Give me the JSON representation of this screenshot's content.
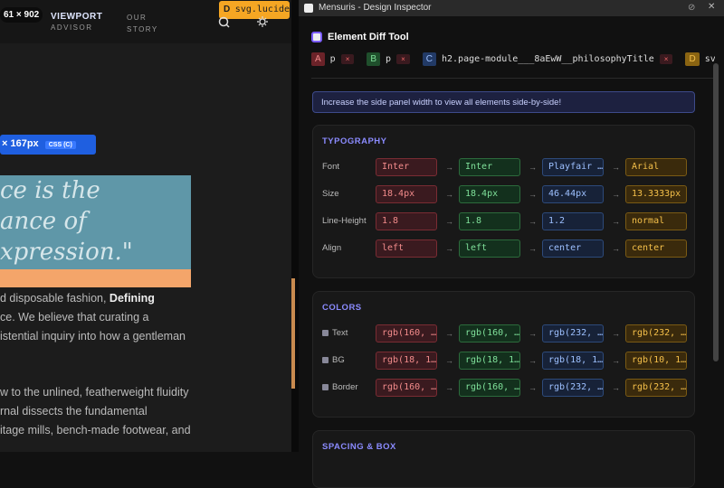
{
  "website": {
    "viewport_size": "61 × 902",
    "viewport_label": "VIEWPORT",
    "nav": [
      "ADVISOR",
      "OUR STORY"
    ],
    "hover_badge": {
      "letter": "D",
      "label": "svg.lucide"
    },
    "size_badge": {
      "text": "× 167px",
      "css": "CSS (C)"
    },
    "quote": [
      "ce is the",
      "ance of",
      "xpression.\""
    ],
    "paragraph1": [
      {
        "text": "d disposable fashion, ",
        "bold": "Defining"
      },
      {
        "text": "ce. We believe that curating a"
      },
      {
        "text": "istential inquiry into how a gentleman"
      }
    ],
    "paragraph2": [
      "w to the unlined, featherweight fluidity",
      "rnal dissects the fundamental",
      "itage mills, bench-made footwear, and"
    ]
  },
  "inspector": {
    "window_title": "Mensuris - Design Inspector",
    "tool_title": "Element Diff Tool",
    "chips": [
      {
        "letter": "A",
        "label": "p"
      },
      {
        "letter": "B",
        "label": "p"
      },
      {
        "letter": "C",
        "label": "h2.page-module___8aEwW__philosophyTitle"
      },
      {
        "letter": "D",
        "label": "svg.l"
      }
    ],
    "notice": "Increase the side panel width to view all elements side-by-side!",
    "sections": [
      {
        "title": "TYPOGRAPHY",
        "rows": [
          {
            "label": "Font",
            "values": [
              "Inter",
              "Inter",
              "Playfair …",
              "Arial"
            ]
          },
          {
            "label": "Size",
            "values": [
              "18.4px",
              "18.4px",
              "46.44px",
              "13.3333px"
            ]
          },
          {
            "label": "Line-Height",
            "values": [
              "1.8",
              "1.8",
              "1.2",
              "normal"
            ]
          },
          {
            "label": "Align",
            "values": [
              "left",
              "left",
              "center",
              "center"
            ]
          }
        ]
      },
      {
        "title": "COLORS",
        "rows": [
          {
            "label": "Text",
            "values": [
              "rgb(160, …",
              "rgb(160, …",
              "rgb(232, …",
              "rgb(232, …"
            ]
          },
          {
            "label": "BG",
            "values": [
              "rgb(18, 1…",
              "rgb(18, 1…",
              "rgb(18, 1…",
              "rgb(10, 1…"
            ]
          },
          {
            "label": "Border",
            "values": [
              "rgb(160, …",
              "rgb(160, …",
              "rgb(232, …",
              "rgb(232, …"
            ]
          }
        ]
      },
      {
        "title": "SPACING & BOX",
        "rows": []
      }
    ]
  }
}
